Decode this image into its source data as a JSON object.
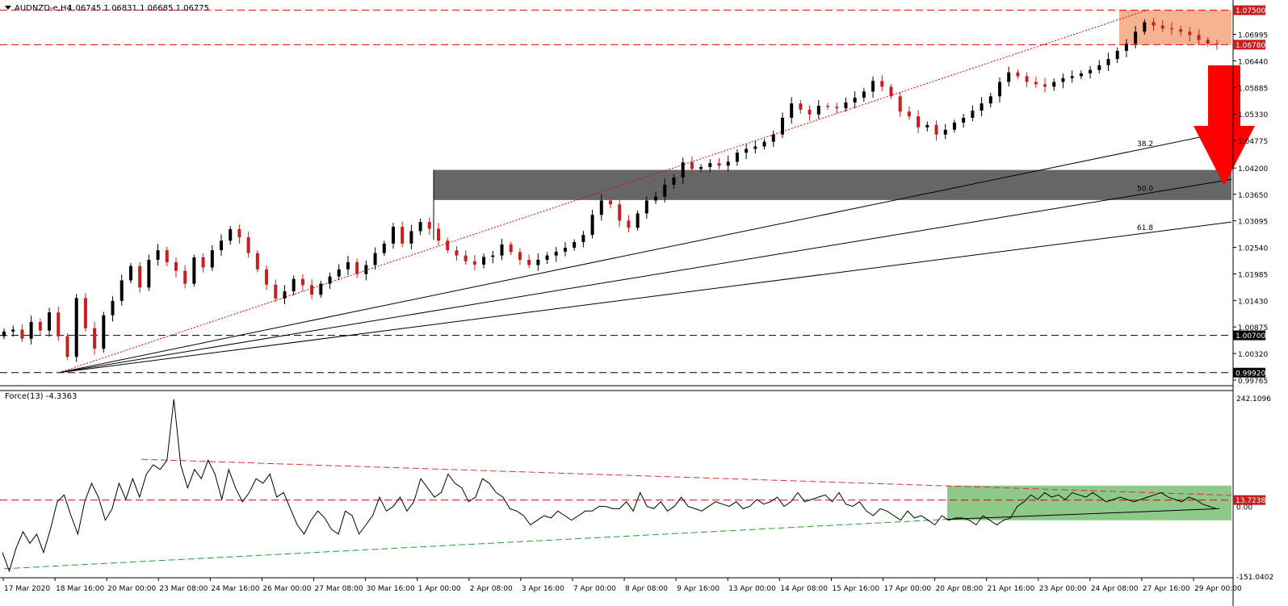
{
  "chart_data": [
    {
      "type": "candlestick",
      "symbol_label": "AUDNZD-e,H4",
      "ohlc_label": "1.06745 1.06831 1.06685 1.06775",
      "y_ticks": [
        "1.06995",
        "1.06440",
        "1.05885",
        "1.05330",
        "1.04775",
        "1.04200",
        "1.03650",
        "1.03095",
        "1.02540",
        "1.01985",
        "1.01430",
        "1.00875",
        "1.00320",
        "0.99765"
      ],
      "ylim": [
        0.9968,
        1.0768
      ],
      "levels": [
        {
          "label": "1.07500",
          "value": 1.075,
          "style": "red-dashed"
        },
        {
          "label": "1.06780",
          "value": 1.0678,
          "style": "red-dashed"
        },
        {
          "label": "1.00700",
          "value": 1.007,
          "style": "black-dashed"
        },
        {
          "label": "0.99920",
          "value": 0.9992,
          "style": "black-dashed"
        }
      ],
      "zones": [
        {
          "name": "resistance-zone",
          "from": 1.0678,
          "to": 1.075,
          "color": "#f5b391"
        },
        {
          "name": "support-zone",
          "from": 1.0353,
          "to": 1.0416,
          "color": "#666666"
        }
      ],
      "fib_fan": [
        {
          "label": "38.2",
          "end_value": 1.0498
        },
        {
          "label": "50.0",
          "end_value": 1.0396
        },
        {
          "label": "61.8",
          "end_value": 1.0307
        }
      ],
      "fan_origin_value": 0.9992,
      "trendline_end_value": 1.075,
      "closes": [
        1.0078,
        1.0082,
        1.0063,
        1.0098,
        1.008,
        1.0118,
        1.0068,
        1.0025,
        1.0148,
        1.0085,
        1.0042,
        1.0112,
        1.0142,
        1.0185,
        1.0215,
        1.017,
        1.0228,
        1.0248,
        1.0223,
        1.0205,
        1.0178,
        1.0233,
        1.0212,
        1.0248,
        1.0268,
        1.0292,
        1.0275,
        1.0242,
        1.0208,
        1.0176,
        1.0147,
        1.0162,
        1.0188,
        1.0175,
        1.0155,
        1.0178,
        1.0193,
        1.0208,
        1.0223,
        1.0198,
        1.0217,
        1.0242,
        1.0262,
        1.0297,
        1.0262,
        1.0288,
        1.0307,
        1.0293,
        1.0268,
        1.0248,
        1.0237,
        1.0225,
        1.0218,
        1.0234,
        1.0237,
        1.026,
        1.0244,
        1.0228,
        1.0217,
        1.0228,
        1.0237,
        1.0245,
        1.0253,
        1.0265,
        1.028,
        1.0322,
        1.0352,
        1.0344,
        1.031,
        1.0295,
        1.0325,
        1.0352,
        1.036,
        1.0385,
        1.04,
        1.0432,
        1.0418,
        1.0422,
        1.043,
        1.0425,
        1.0433,
        1.0452,
        1.046,
        1.0465,
        1.0475,
        1.049,
        1.0525,
        1.0555,
        1.0542,
        1.0532,
        1.055,
        1.0548,
        1.0545,
        1.0557,
        1.0567,
        1.058,
        1.0602,
        1.059,
        1.057,
        1.0538,
        1.0528,
        1.0505,
        1.051,
        1.049,
        1.05,
        1.0515,
        1.0525,
        1.054,
        1.0555,
        1.057,
        1.06,
        1.062,
        1.0612,
        1.06,
        1.0595,
        1.059,
        1.06,
        1.0608,
        1.0612,
        1.0618,
        1.0625,
        1.0635,
        1.0648,
        1.0665,
        1.068,
        1.0705,
        1.0725,
        1.0718,
        1.0712,
        1.071,
        1.0705,
        1.0698,
        1.0688,
        1.068,
        1.0678
      ]
    },
    {
      "type": "line",
      "indicator_label": "Force(13) -4.3363",
      "y_ticks": [
        "242.1096",
        "0.00",
        "-151.0402"
      ],
      "ylim": [
        -151.0402,
        242.1096
      ],
      "levels": [
        {
          "label": "13.7238",
          "value": 13.7238,
          "style": "red-dashed"
        }
      ],
      "zones": [
        {
          "name": "force-range-zone",
          "from": -30,
          "to": 45,
          "color": "#8fc98a"
        }
      ],
      "trendlines": [
        {
          "name": "descending-resistance",
          "from_value": 102,
          "to_value": 24
        },
        {
          "name": "ascending-support",
          "from_value": -135,
          "to_value": -5
        }
      ],
      "values": [
        -100,
        -140,
        -90,
        -55,
        -80,
        -60,
        -100,
        -50,
        10,
        25,
        -20,
        -60,
        10,
        50,
        20,
        -30,
        -5,
        50,
        15,
        60,
        20,
        70,
        90,
        80,
        100,
        232,
        90,
        40,
        80,
        60,
        100,
        70,
        15,
        80,
        40,
        10,
        30,
        60,
        50,
        70,
        20,
        30,
        -5,
        -40,
        -60,
        -30,
        -10,
        -25,
        -50,
        -60,
        -10,
        -20,
        -60,
        -40,
        -20,
        20,
        -10,
        0,
        20,
        -10,
        10,
        60,
        40,
        20,
        30,
        70,
        50,
        40,
        10,
        20,
        60,
        50,
        30,
        20,
        -5,
        -10,
        -20,
        -40,
        -30,
        -20,
        -25,
        -10,
        -20,
        -30,
        -20,
        -10,
        -10,
        0,
        0,
        -5,
        -5,
        10,
        -10,
        30,
        0,
        -5,
        10,
        -10,
        0,
        20,
        0,
        -5,
        -10,
        0,
        10,
        5,
        0,
        10,
        -5,
        0,
        15,
        5,
        10,
        20,
        0,
        10,
        30,
        10,
        15,
        20,
        25,
        10,
        30,
        5,
        0,
        10,
        -10,
        -20,
        -5,
        -10,
        -20,
        -30,
        -10,
        -25,
        -20,
        -30,
        -40,
        -20,
        -30,
        -25,
        -25,
        -30,
        -40,
        -20,
        -30,
        -40,
        -30,
        -25,
        0,
        10,
        25,
        15,
        30,
        20,
        25,
        15,
        30,
        25,
        20,
        30,
        20,
        10,
        15,
        20,
        15,
        10,
        15,
        20,
        25,
        30,
        20,
        15,
        10,
        20,
        15,
        5,
        0,
        -5
      ],
      "value_label": "-4.3363"
    }
  ],
  "x_axis": {
    "labels": [
      "17 Mar 2020",
      "18 Mar 16:00",
      "20 Mar 00:00",
      "23 Mar 08:00",
      "24 Mar 16:00",
      "26 Mar 00:00",
      "27 Mar 08:00",
      "30 Mar 16:00",
      "1 Apr 00:00",
      "2 Apr 08:00",
      "3 Apr 16:00",
      "7 Apr 00:00",
      "8 Apr 08:00",
      "9 Apr 16:00",
      "13 Apr 00:00",
      "14 Apr 08:00",
      "15 Apr 16:00",
      "17 Apr 00:00",
      "20 Apr 08:00",
      "21 Apr 16:00",
      "23 Apr 00:00",
      "24 Apr 08:00",
      "27 Apr 16:00",
      "29 Apr 00:00"
    ]
  },
  "colors": {
    "bull": "#000000",
    "bear": "#c81e1e",
    "dashed_red": "#e00000",
    "arrow": "#ff0000",
    "label_bg_red": "#c81e1e",
    "label_bg_black": "#000000",
    "trend_red": "#e03030",
    "trend_green": "#2a9a2a"
  }
}
